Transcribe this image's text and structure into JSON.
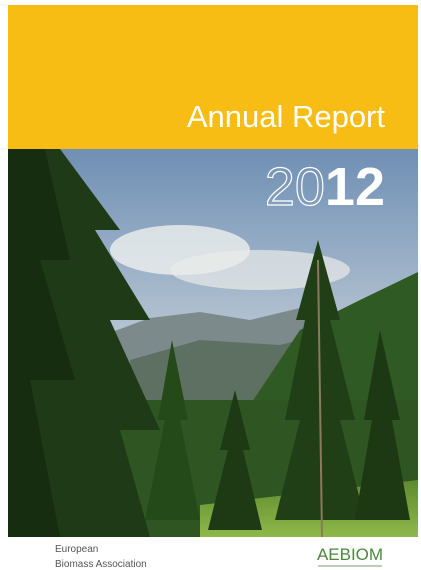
{
  "cover": {
    "title": "Annual Report",
    "year": {
      "outlined": "20",
      "bold": "12"
    }
  },
  "footer": {
    "line1": "European",
    "line2": "Biomass Association",
    "logo": "AEBIOM"
  }
}
